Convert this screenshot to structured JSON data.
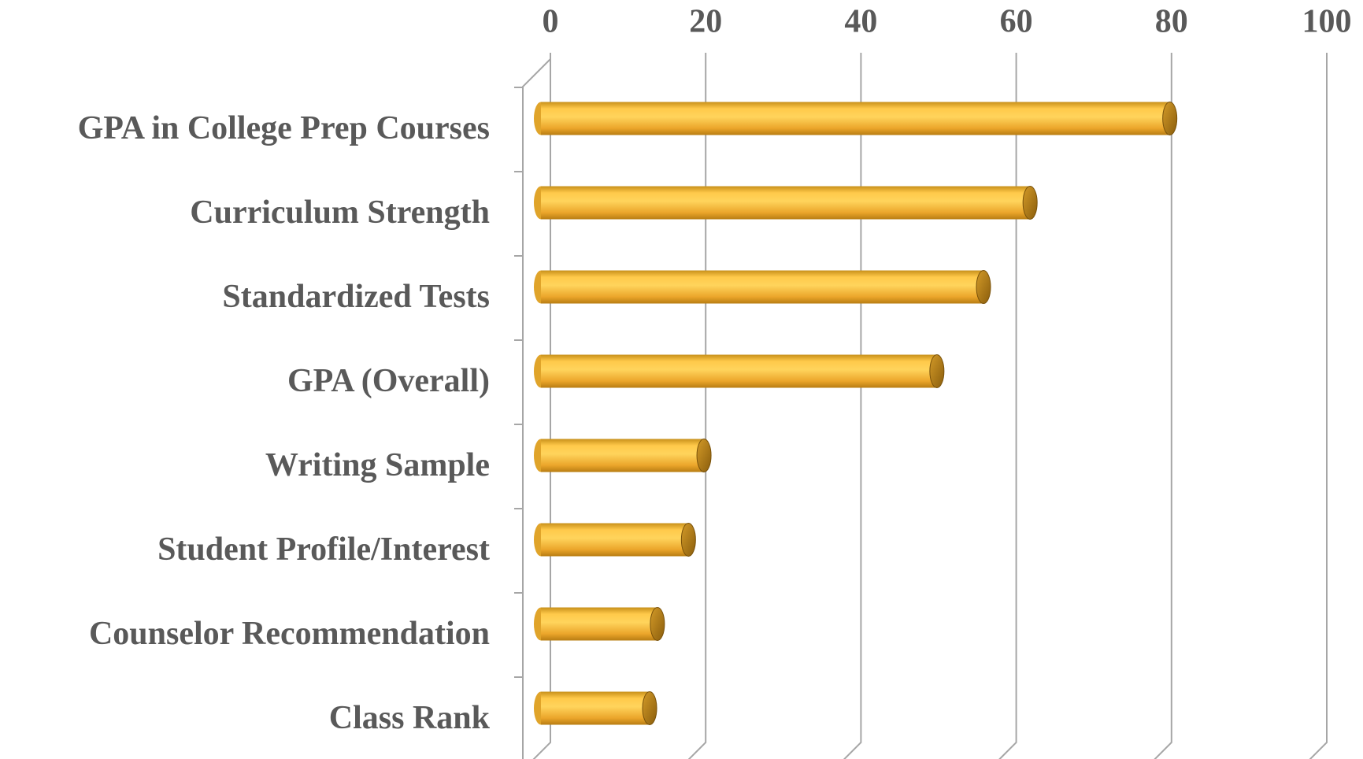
{
  "chart_data": {
    "type": "bar",
    "orientation": "horizontal",
    "categories": [
      "GPA in College Prep Courses",
      "Curriculum Strength",
      "Standardized Tests",
      "GPA (Overall)",
      "Writing Sample",
      "Student Profile/Interest",
      "Counselor Recommendation",
      "Class Rank"
    ],
    "values": [
      81,
      63,
      57,
      51,
      21,
      19,
      15,
      14
    ],
    "color": "#f5b731",
    "xlim": [
      0,
      100
    ],
    "xticks": [
      0,
      20,
      40,
      60,
      80,
      100
    ],
    "grid": true
  }
}
